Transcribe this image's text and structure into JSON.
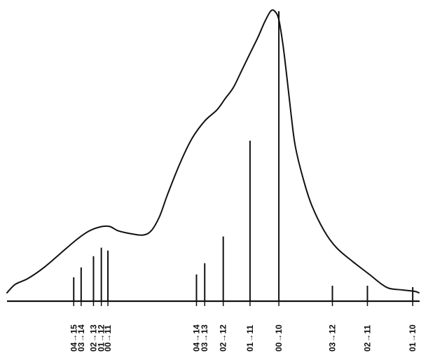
{
  "chart_data": {
    "type": "line",
    "title": "",
    "xlabel": "",
    "ylabel": "",
    "grid": false,
    "legend": "none",
    "x_units": "arbitrary (position along the horizontal axis, left = 0, right = 1)",
    "y_units": "relative intensity (envelope peak = 1)",
    "xlim": [
      0,
      1
    ],
    "ylim": [
      0,
      1
    ],
    "envelope": {
      "x": [
        0.0,
        0.02,
        0.05,
        0.09,
        0.13,
        0.17,
        0.2,
        0.23,
        0.25,
        0.27,
        0.3,
        0.33,
        0.35,
        0.37,
        0.39,
        0.42,
        0.45,
        0.48,
        0.51,
        0.53,
        0.55,
        0.57,
        0.59,
        0.61,
        0.625,
        0.64,
        0.65,
        0.66,
        0.67,
        0.68,
        0.69,
        0.7,
        0.72,
        0.74,
        0.77,
        0.8,
        0.84,
        0.88,
        0.91,
        0.93,
        0.96,
        0.99,
        1.0
      ],
      "y": [
        0.0,
        0.03,
        0.05,
        0.09,
        0.14,
        0.19,
        0.22,
        0.235,
        0.235,
        0.22,
        0.21,
        0.205,
        0.22,
        0.27,
        0.35,
        0.46,
        0.55,
        0.61,
        0.65,
        0.69,
        0.73,
        0.79,
        0.85,
        0.91,
        0.96,
        1.0,
        1.0,
        0.97,
        0.88,
        0.76,
        0.63,
        0.52,
        0.4,
        0.31,
        0.22,
        0.16,
        0.11,
        0.065,
        0.03,
        0.015,
        0.01,
        0.005,
        0.0
      ]
    },
    "transitions": [
      {
        "label": "04→15",
        "x": 0.162,
        "y": 0.055
      },
      {
        "label": "03→14",
        "x": 0.18,
        "y": 0.09
      },
      {
        "label": "02→13",
        "x": 0.21,
        "y": 0.13
      },
      {
        "label": "01→12",
        "x": 0.229,
        "y": 0.16
      },
      {
        "label": "00→11",
        "x": 0.245,
        "y": 0.15
      },
      {
        "label": "04→14",
        "x": 0.46,
        "y": 0.065
      },
      {
        "label": "03→13",
        "x": 0.48,
        "y": 0.105
      },
      {
        "label": "02→12",
        "x": 0.525,
        "y": 0.2
      },
      {
        "label": "01→11",
        "x": 0.59,
        "y": 0.54
      },
      {
        "label": "00→10",
        "x": 0.66,
        "y": 1.0
      },
      {
        "label": "03→12",
        "x": 0.79,
        "y": 0.025
      },
      {
        "label": "02→11",
        "x": 0.875,
        "y": 0.025
      },
      {
        "label": "01→10",
        "x": 0.985,
        "y": 0.02
      }
    ]
  }
}
